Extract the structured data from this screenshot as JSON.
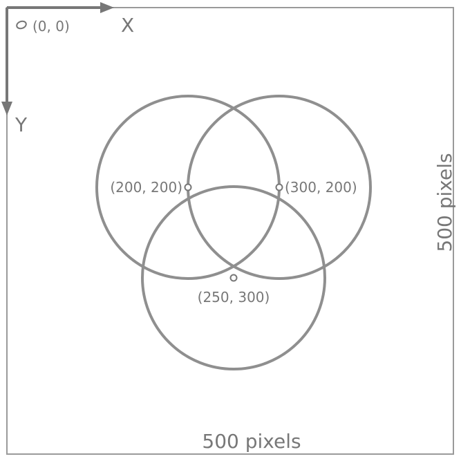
{
  "origin": {
    "label": "(0, 0)"
  },
  "axes": {
    "x_label": "X",
    "y_label": "Y"
  },
  "canvas": {
    "width_label": "500 pixels",
    "height_label": "500 pixels"
  },
  "circles": [
    {
      "center_label": "(200, 200)"
    },
    {
      "center_label": "(300, 200)"
    },
    {
      "center_label": "(250, 300)"
    }
  ],
  "colors": {
    "stroke": "#8f8f8f",
    "text": "#777777",
    "frame": "#9a9a9a"
  }
}
